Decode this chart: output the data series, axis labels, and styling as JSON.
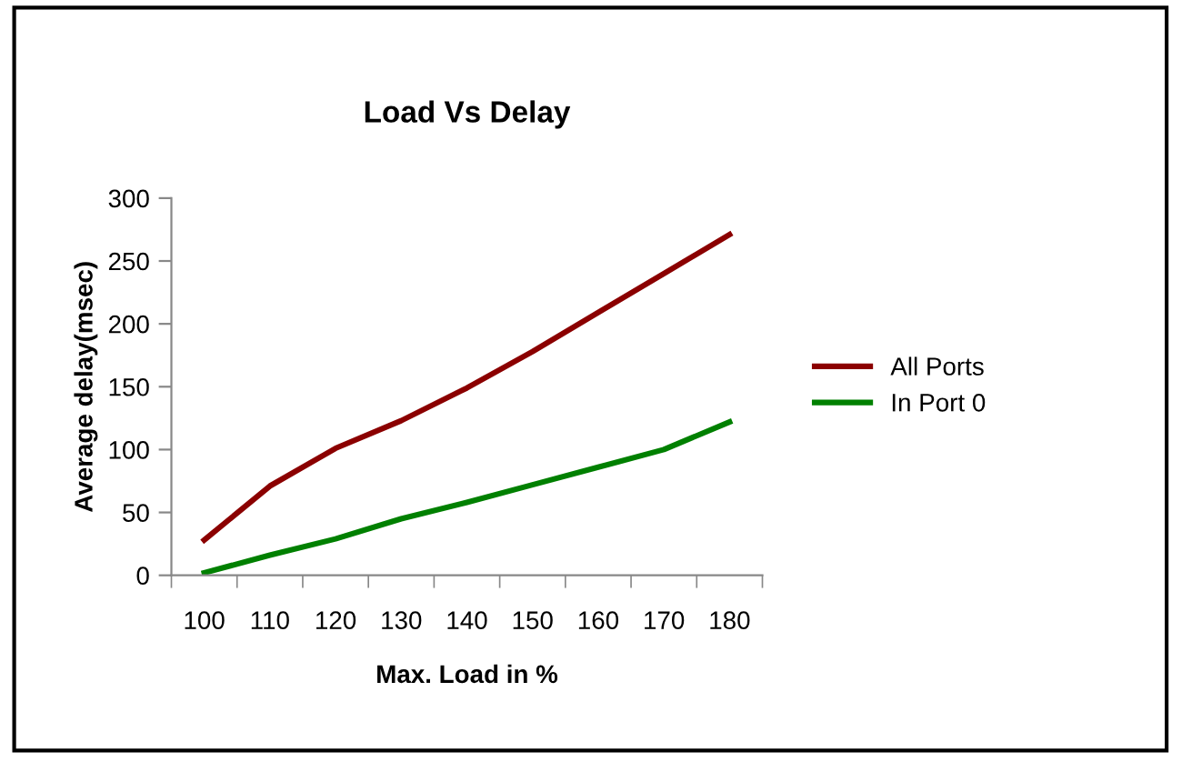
{
  "chart_data": {
    "type": "line",
    "title": "Load Vs Delay",
    "xlabel": "Max. Load in %",
    "ylabel": "Average delay(msec)",
    "categories": [
      "100",
      "110",
      "120",
      "130",
      "140",
      "150",
      "160",
      "170",
      "180"
    ],
    "series": [
      {
        "name": "All Ports",
        "color": "#8b0000",
        "values": [
          28,
          71,
          101,
          123,
          149,
          178,
          209,
          240,
          271
        ]
      },
      {
        "name": "In Port 0",
        "color": "#008000",
        "values": [
          2,
          16,
          29,
          45,
          58,
          72,
          86,
          100,
          122
        ]
      }
    ],
    "ylim": [
      0,
      300
    ],
    "yticks": [
      0,
      50,
      100,
      150,
      200,
      250,
      300
    ],
    "grid": false,
    "legend": "right",
    "marker": "none",
    "line_style": "solid"
  }
}
